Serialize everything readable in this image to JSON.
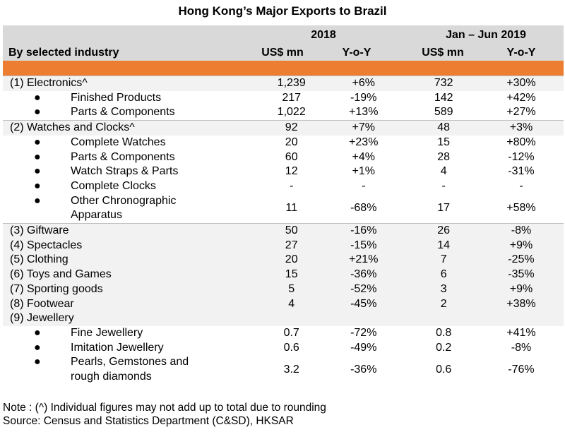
{
  "title": "Hong Kong’s Major Exports to Brazil",
  "header": {
    "period_2018": "2018",
    "period_2019": "Jan – Jun 2019",
    "row_label": "By selected industry",
    "col_value": "US$ mn",
    "col_yoy": "Y-o-Y"
  },
  "rows": [
    {
      "label": "(1) Electronics^",
      "v1": "1,239",
      "v2": "+6%",
      "v3": "732",
      "v4": "+30%"
    },
    {
      "label": "Finished Products",
      "v1": "217",
      "v2": "-19%",
      "v3": "142",
      "v4": "+42%"
    },
    {
      "label": "Parts & Components",
      "v1": "1,022",
      "v2": "+13%",
      "v3": "589",
      "v4": "+27%"
    },
    {
      "label": "(2) Watches and Clocks^",
      "v1": "92",
      "v2": "+7%",
      "v3": "48",
      "v4": "+3%"
    },
    {
      "label": "Complete Watches",
      "v1": "20",
      "v2": "+23%",
      "v3": "15",
      "v4": "+80%"
    },
    {
      "label": "Parts & Components",
      "v1": "60",
      "v2": "+4%",
      "v3": "28",
      "v4": "-12%"
    },
    {
      "label": "Watch Straps & Parts",
      "v1": "12",
      "v2": "+1%",
      "v3": "4",
      "v4": "-31%"
    },
    {
      "label": "Complete Clocks",
      "v1": "-",
      "v2": "-",
      "v3": "-",
      "v4": "-"
    },
    {
      "label1": "Other Chronographic",
      "label2": "Apparatus",
      "v1": "11",
      "v2": "-68%",
      "v3": "17",
      "v4": "+58%"
    },
    {
      "label": "(3) Giftware",
      "v1": "50",
      "v2": "-16%",
      "v3": "26",
      "v4": "-8%"
    },
    {
      "label": "(4) Spectacles",
      "v1": "27",
      "v2": "-15%",
      "v3": "14",
      "v4": "+9%"
    },
    {
      "label": "(5) Clothing",
      "v1": "20",
      "v2": "+21%",
      "v3": "7",
      "v4": "-25%"
    },
    {
      "label": "(6) Toys and Games",
      "v1": "15",
      "v2": "-36%",
      "v3": "6",
      "v4": "-35%"
    },
    {
      "label": "(7) Sporting goods",
      "v1": "5",
      "v2": "-52%",
      "v3": "3",
      "v4": "+9%"
    },
    {
      "label": "(8) Footwear",
      "v1": "4",
      "v2": "-45%",
      "v3": "2",
      "v4": "+38%"
    },
    {
      "label": "(9) Jewellery"
    },
    {
      "label": "Fine Jewellery",
      "v1": "0.7",
      "v2": "-72%",
      "v3": "0.8",
      "v4": "+41%"
    },
    {
      "label": "Imitation Jewellery",
      "v1": "0.6",
      "v2": "-49%",
      "v3": "0.2",
      "v4": "-8%"
    },
    {
      "label1": "Pearls, Gemstones and",
      "label2": "rough diamonds",
      "v1": "3.2",
      "v2": "-36%",
      "v3": "0.6",
      "v4": "-76%"
    }
  ],
  "bullet": "●",
  "notes": {
    "note": "Note : (^) Individual figures may not add up to total due to rounding",
    "source": "Source: Census and Statistics Department (C&SD), HKSAR"
  }
}
